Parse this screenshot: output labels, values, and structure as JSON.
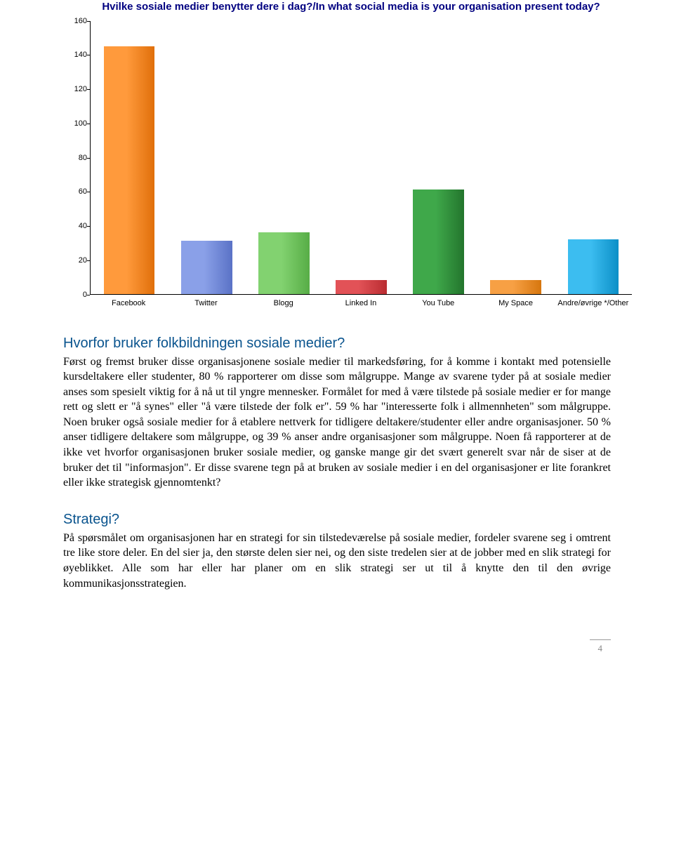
{
  "chart": {
    "type": "bar",
    "title": "Hvilke sosiale medier benytter dere i dag?/In what social media is your organisation present today?",
    "title_color": "#000080",
    "title_fontsize": 15,
    "categories": [
      "Facebook",
      "Twitter",
      "Blogg",
      "Linked In",
      "You Tube",
      "My Space",
      "Andre/øvrige */Other"
    ],
    "values": [
      145,
      31,
      36,
      8,
      61,
      8,
      32
    ],
    "bar_colors": [
      "#f08222",
      "#7088d8",
      "#6bbf59",
      "#d0393e",
      "#2f8b3a",
      "#e78a1e",
      "#1aa5df"
    ],
    "bar_gradients": [
      [
        "#ff9a3c",
        "#e06f0a"
      ],
      [
        "#8aa0e8",
        "#5a72c6"
      ],
      [
        "#82d270",
        "#57ad46"
      ],
      [
        "#e25257",
        "#b92c31"
      ],
      [
        "#3fa84a",
        "#23752d"
      ],
      [
        "#f7a044",
        "#d6760e"
      ],
      [
        "#3cbdf0",
        "#0b8fc7"
      ]
    ],
    "ylim": [
      0,
      160
    ],
    "ytick_step": 20,
    "yticks": [
      0,
      20,
      40,
      60,
      80,
      100,
      120,
      140,
      160
    ],
    "axis_color": "#000000",
    "background_color": "#ffffff",
    "label_fontsize": 11,
    "bar_width": 0.66
  },
  "sections": {
    "s1": {
      "heading": "Hvorfor bruker folkbildningen sosiale medier?",
      "body": "Først og fremst bruker disse organisasjonene sosiale medier til markedsføring, for å komme i kontakt med potensielle kursdeltakere eller studenter, 80 % rapporterer om disse som målgruppe. Mange av svarene tyder på at sosiale medier anses som spesielt viktig for å nå ut til yngre mennesker. Formålet for med å være tilstede på sosiale medier er for mange rett og slett er \"å synes\" eller \"å være tilstede der folk er\". 59 % har \"interesserte folk i allmennheten\" som målgruppe. Noen bruker også sosiale medier for å etablere nettverk for tidligere deltakere/studenter eller andre organisasjoner. 50 % anser tidligere deltakere som målgruppe, og 39 % anser andre organisasjoner som målgruppe. Noen få rapporterer at de ikke vet hvorfor organisasjonen bruker sosiale medier, og ganske mange gir det svært generelt svar når de siser at de bruker det til \"informasjon\". Er disse svarene tegn på at bruken av sosiale medier i en del organisasjoner er lite forankret eller ikke strategisk gjennomtenkt?"
    },
    "s2": {
      "heading": "Strategi?",
      "body": "På spørsmålet om organisasjonen har en strategi for sin tilstedeværelse på sosiale medier, fordeler svarene seg i omtrent tre like store deler. En del sier ja, den største delen sier nei, og den siste tredelen sier at de jobber med en slik strategi for øyeblikket. Alle som har eller har planer om en slik strategi ser ut til å knytte den til den øvrige kommunikasjonsstrategien."
    }
  },
  "page_number": "4"
}
